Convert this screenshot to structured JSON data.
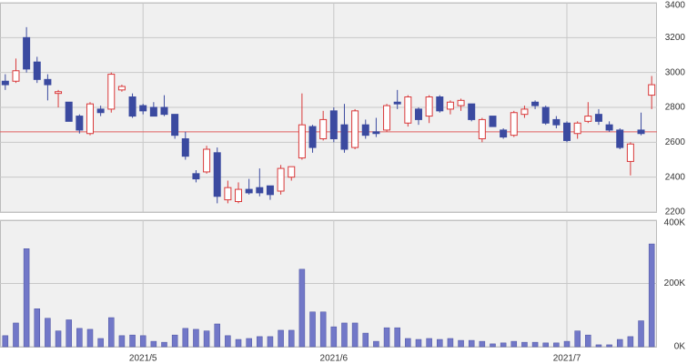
{
  "chart_data": [
    {
      "type": "candlestick",
      "open": [
        2950,
        2950,
        3200,
        3060,
        2960,
        2880,
        2830,
        2750,
        2650,
        2790,
        2790,
        2900,
        2860,
        2810,
        2800,
        2800,
        2760,
        2620,
        2420,
        2430,
        2540,
        2270,
        2260,
        2330,
        2340,
        2350,
        2320,
        2400,
        2510,
        2690,
        2620,
        2780,
        2700,
        2570,
        2700,
        2660,
        2670,
        2830,
        2710,
        2790,
        2750,
        2860,
        2790,
        2810,
        2820,
        2620,
        2750,
        2670,
        2640,
        2760,
        2830,
        2800,
        2730,
        2710,
        2650,
        2720,
        2760,
        2700,
        2670,
        2490,
        2670,
        2870
      ],
      "high": [
        2990,
        3080,
        3260,
        3090,
        2990,
        2900,
        2830,
        2760,
        2830,
        2810,
        3000,
        2930,
        2880,
        2820,
        2830,
        2870,
        2760,
        2660,
        2440,
        2580,
        2570,
        2380,
        2370,
        2390,
        2450,
        2350,
        2470,
        2460,
        2880,
        2700,
        2780,
        2800,
        2820,
        2790,
        2730,
        2740,
        2820,
        2900,
        2870,
        2800,
        2870,
        2870,
        2840,
        2850,
        2820,
        2740,
        2750,
        2680,
        2780,
        2810,
        2840,
        2810,
        2750,
        2720,
        2720,
        2830,
        2790,
        2720,
        2680,
        2600,
        2770,
        2980
      ],
      "low": [
        2900,
        2940,
        3000,
        2940,
        2840,
        2800,
        2720,
        2650,
        2640,
        2750,
        2770,
        2890,
        2740,
        2760,
        2750,
        2750,
        2620,
        2500,
        2370,
        2420,
        2250,
        2250,
        2250,
        2300,
        2290,
        2270,
        2300,
        2380,
        2500,
        2540,
        2610,
        2600,
        2540,
        2560,
        2620,
        2630,
        2660,
        2790,
        2690,
        2700,
        2710,
        2770,
        2760,
        2780,
        2720,
        2600,
        2690,
        2620,
        2630,
        2740,
        2790,
        2700,
        2680,
        2600,
        2620,
        2710,
        2700,
        2660,
        2560,
        2410,
        2640,
        2790
      ],
      "close": [
        2930,
        3010,
        3020,
        2960,
        2930,
        2890,
        2720,
        2670,
        2820,
        2770,
        2990,
        2920,
        2750,
        2780,
        2750,
        2760,
        2640,
        2520,
        2390,
        2560,
        2290,
        2340,
        2330,
        2310,
        2310,
        2300,
        2450,
        2460,
        2700,
        2570,
        2730,
        2620,
        2560,
        2780,
        2640,
        2650,
        2810,
        2820,
        2860,
        2730,
        2860,
        2780,
        2830,
        2840,
        2730,
        2730,
        2690,
        2630,
        2770,
        2790,
        2810,
        2710,
        2700,
        2610,
        2710,
        2750,
        2720,
        2670,
        2570,
        2590,
        2650,
        2930
      ],
      "ylim": [
        2200,
        3400
      ],
      "yticks": [
        2200,
        2400,
        2600,
        2800,
        3000,
        3200,
        3400
      ],
      "up_color": "#d9393a",
      "down_color": "#3b4aa0",
      "reference_line": 2660,
      "reference_color": "#e06060",
      "grid": true
    },
    {
      "type": "bar",
      "categories": [
        null,
        null,
        null,
        null,
        null,
        null,
        null,
        null,
        null,
        null,
        null,
        null,
        null,
        "2021/5",
        null,
        null,
        null,
        null,
        null,
        null,
        null,
        null,
        null,
        null,
        null,
        null,
        null,
        null,
        null,
        null,
        null,
        "2021/6",
        null,
        null,
        null,
        null,
        null,
        null,
        null,
        null,
        null,
        null,
        null,
        null,
        null,
        null,
        null,
        null,
        null,
        null,
        null,
        null,
        null,
        "2021/7",
        null,
        null,
        null,
        null,
        null,
        null,
        null,
        null
      ],
      "values": [
        35000,
        75000,
        310000,
        120000,
        90000,
        50000,
        85000,
        58000,
        55000,
        26000,
        92000,
        35000,
        37000,
        35000,
        17000,
        14000,
        37000,
        58000,
        55000,
        50000,
        72000,
        35000,
        23000,
        26000,
        32000,
        32000,
        52000,
        52000,
        245000,
        110000,
        110000,
        63000,
        75000,
        75000,
        43000,
        17000,
        60000,
        60000,
        26000,
        23000,
        26000,
        23000,
        26000,
        20000,
        20000,
        17000,
        9000,
        12000,
        17000,
        14000,
        14000,
        12000,
        12000,
        17000,
        50000,
        37000,
        6000,
        6000,
        23000,
        32000,
        82000,
        325000
      ],
      "ylim": [
        0,
        400000
      ],
      "yticks": [
        {
          "value": 0,
          "label": "0K"
        },
        {
          "value": 200000,
          "label": "200K"
        },
        {
          "value": 400000,
          "label": "400K"
        }
      ],
      "color": "#7278c8",
      "grid": true
    }
  ]
}
